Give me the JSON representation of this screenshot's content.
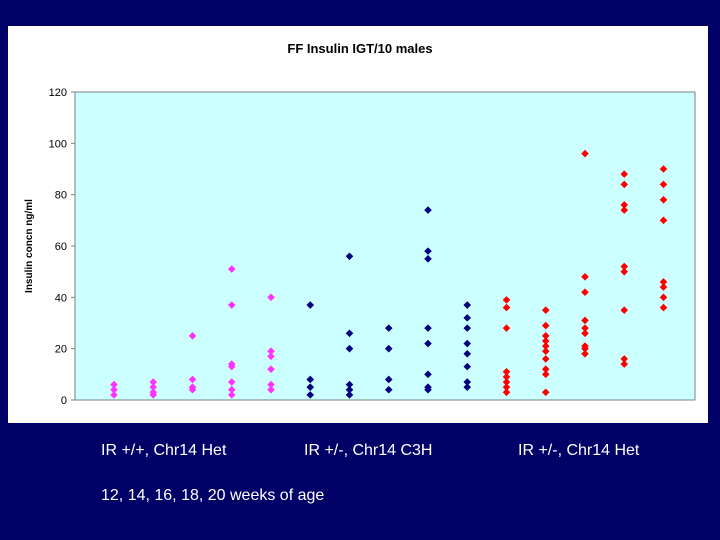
{
  "chart_data": {
    "type": "scatter",
    "title": "FF Insulin IGT/10 males",
    "xlabel": "",
    "ylabel": "Insulin concn ng/ml",
    "ylim": [
      0,
      120
    ],
    "yticks": [
      0,
      20,
      40,
      60,
      80,
      100,
      120
    ],
    "grid": false,
    "legend": "none",
    "groups": [
      {
        "name": "IR +/+, Chr14 Het",
        "color": "#ff33ff",
        "columns": [
          {
            "week": 12,
            "values": [
              2,
              4,
              6
            ]
          },
          {
            "week": 14,
            "values": [
              2,
              3,
              5,
              7
            ]
          },
          {
            "week": 16,
            "values": [
              4,
              5,
              8,
              25
            ]
          },
          {
            "week": 18,
            "values": [
              2,
              4,
              7,
              13,
              14,
              37,
              51
            ]
          },
          {
            "week": 20,
            "values": [
              4,
              6,
              12,
              17,
              19,
              40
            ]
          }
        ]
      },
      {
        "name": "IR +/-, Chr14 C3H",
        "color": "#000080",
        "columns": [
          {
            "week": 12,
            "values": [
              2,
              5,
              8,
              37
            ]
          },
          {
            "week": 14,
            "values": [
              2,
              4,
              6,
              20,
              26,
              56
            ]
          },
          {
            "week": 16,
            "values": [
              4,
              8,
              20,
              28
            ]
          },
          {
            "week": 18,
            "values": [
              4,
              5,
              10,
              22,
              28,
              55,
              58,
              74
            ]
          },
          {
            "week": 20,
            "values": [
              5,
              7,
              13,
              18,
              22,
              28,
              32,
              37
            ]
          }
        ]
      },
      {
        "name": "IR +/-, Chr14 Het",
        "color": "#ff0000",
        "columns": [
          {
            "week": 12,
            "values": [
              3,
              5,
              7,
              9,
              11,
              28,
              36,
              39
            ]
          },
          {
            "week": 14,
            "values": [
              3,
              10,
              12,
              16,
              19,
              21,
              23,
              25,
              29,
              35
            ]
          },
          {
            "week": 16,
            "values": [
              18,
              20,
              21,
              26,
              28,
              31,
              42,
              48,
              96
            ]
          },
          {
            "week": 18,
            "values": [
              14,
              16,
              35,
              50,
              52,
              74,
              76,
              84,
              88
            ]
          },
          {
            "week": 20,
            "values": [
              36,
              40,
              44,
              46,
              70,
              78,
              84,
              90
            ]
          }
        ]
      }
    ]
  },
  "footer": {
    "group1_label": "IR +/+, Chr14 Het",
    "group2_label": "IR +/-, Chr14 C3H",
    "group3_label": "IR +/-, Chr14 Het",
    "weeks_label": "12, 14, 16, 18, 20 weeks of age"
  },
  "colors": {
    "slide_background": "#000066",
    "plot_background": "#ccffff"
  }
}
